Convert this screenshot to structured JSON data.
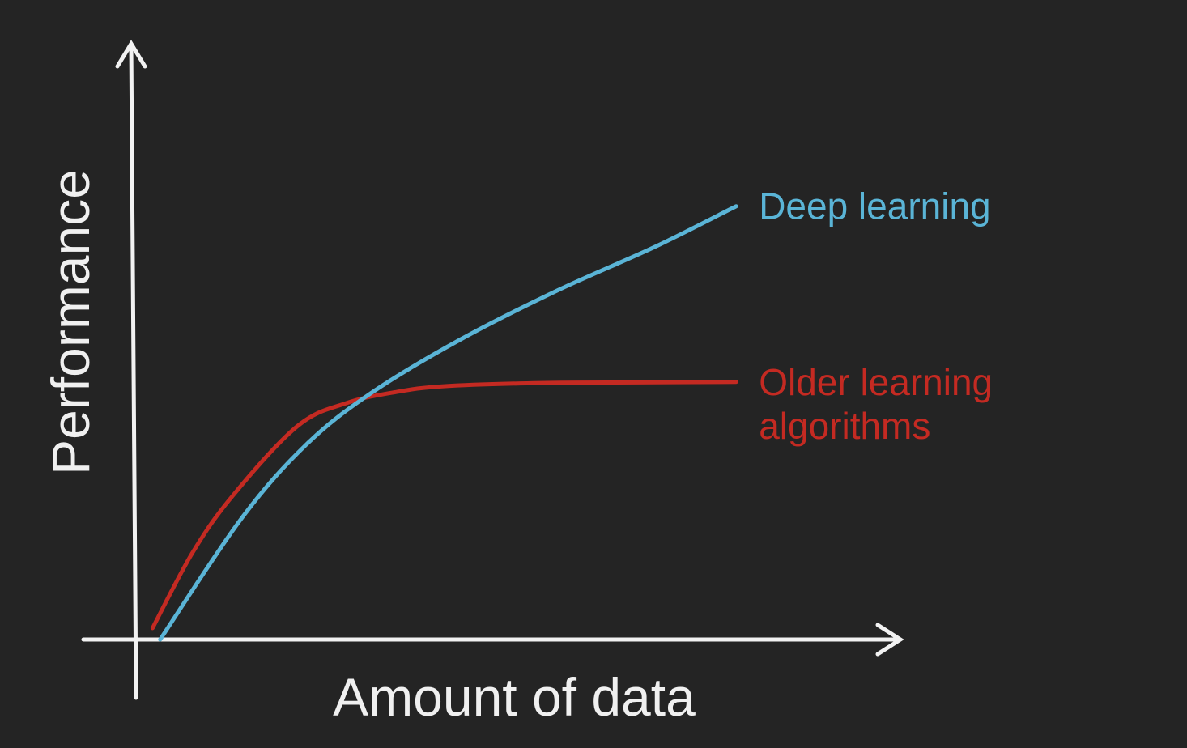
{
  "chart_data": {
    "type": "line",
    "xlabel": "Amount of data",
    "ylabel": "Performance",
    "xlim": [
      0,
      100
    ],
    "ylim": [
      0,
      100
    ],
    "grid": false,
    "legend": "inline-right",
    "axis_color": "#f2f2f2",
    "background": "#242424",
    "series": [
      {
        "name": "Deep learning",
        "label_lines": [
          "Deep learning"
        ],
        "color": "#5ab4d6",
        "x": [
          3.5,
          15.3,
          24.7,
          34.1,
          47.1,
          61.3,
          75.4,
          87.2
        ],
        "y": [
          0,
          22.3,
          35.9,
          45.4,
          55.3,
          64.4,
          72.4,
          79.9
        ]
      },
      {
        "name": "Older learning algorithms",
        "label_lines": [
          "Older learning",
          "algorithms"
        ],
        "color": "#c42a22",
        "x": [
          2.4,
          8.2,
          14.1,
          23.5,
          30.6,
          37.6,
          44.7,
          58.8,
          73.0,
          87.2
        ],
        "y": [
          2.1,
          16.0,
          26.6,
          39.4,
          43.6,
          45.6,
          46.7,
          47.3,
          47.4,
          47.5
        ]
      }
    ]
  }
}
